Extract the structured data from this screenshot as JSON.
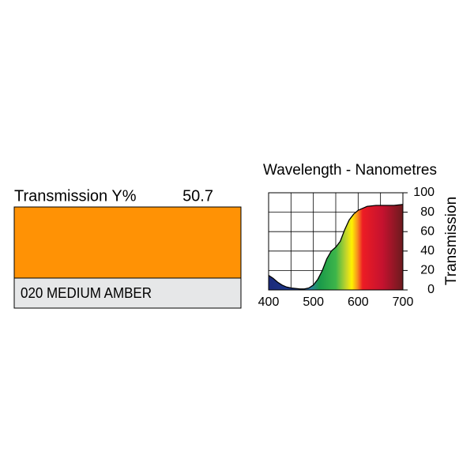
{
  "swatch": {
    "label": "Transmission Y%",
    "value": 50.7,
    "name": "020 MEDIUM AMBER",
    "color": "#ff9205"
  },
  "chart_data": {
    "type": "area",
    "title": "Wavelength - Nanometres",
    "ylabel": "Transmission",
    "x": [
      400,
      410,
      420,
      430,
      440,
      450,
      460,
      470,
      480,
      490,
      500,
      510,
      520,
      530,
      540,
      550,
      560,
      570,
      580,
      590,
      600,
      610,
      620,
      640,
      660,
      680,
      700
    ],
    "values": [
      15,
      12,
      8,
      5,
      3,
      2,
      1.5,
      1,
      1,
      2,
      5,
      11,
      20,
      32,
      40,
      44,
      50,
      62,
      72,
      78,
      82,
      84,
      86,
      87,
      87,
      87,
      88
    ],
    "xlim": [
      400,
      700
    ],
    "xticks": [
      400,
      500,
      600,
      700
    ],
    "x_minor_ticks": [
      450,
      550,
      650
    ],
    "ylim": [
      0,
      100
    ],
    "yticks": [
      0,
      20,
      40,
      60,
      80,
      100
    ],
    "grid": true
  }
}
